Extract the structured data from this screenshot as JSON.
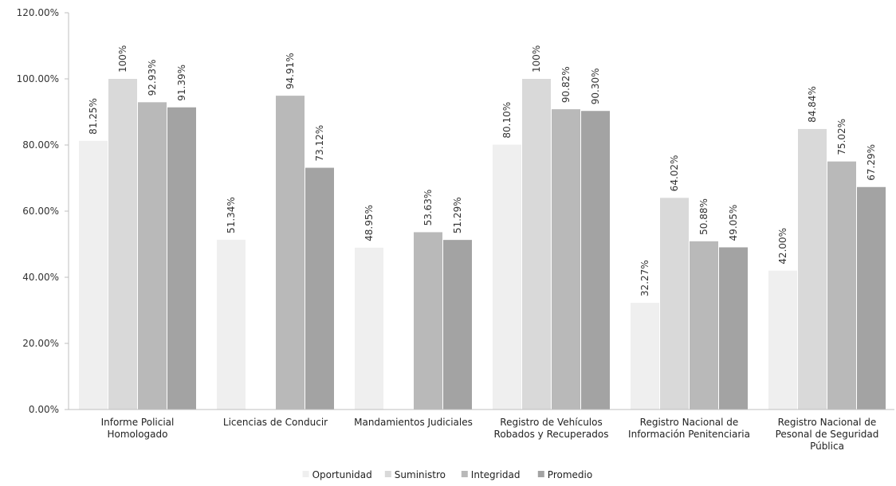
{
  "chart_data": {
    "type": "bar",
    "title": "",
    "xlabel": "",
    "ylabel": "",
    "ylim": [
      0,
      120
    ],
    "yticks": [
      0,
      20,
      40,
      60,
      80,
      100,
      120
    ],
    "ytick_labels": [
      "0.00%",
      "20.00%",
      "40.00%",
      "60.00%",
      "80.00%",
      "100.00%",
      "120.00%"
    ],
    "grid": false,
    "legend_position": "bottom",
    "categories": [
      [
        "Informe Policial",
        "Homologado"
      ],
      [
        "Licencias de Conducir"
      ],
      [
        "Mandamientos Judiciales"
      ],
      [
        "Registro de Vehículos",
        "Robados y Recuperados"
      ],
      [
        "Registro Nacional de",
        "Información Penitenciaria"
      ],
      [
        "Registro Nacional de",
        "Pesonal de Seguridad",
        "Pública"
      ]
    ],
    "series": [
      {
        "name": "Oportunidad",
        "color": "#efefef",
        "values": [
          81.25,
          51.34,
          48.95,
          80.1,
          32.27,
          42.0
        ],
        "labels": [
          "81.25%",
          "51.34%",
          "48.95%",
          "80.10%",
          "32.27%",
          "42.00%"
        ]
      },
      {
        "name": "Suministro",
        "color": "#d9d9d9",
        "values": [
          100,
          null,
          null,
          100,
          64.02,
          84.84
        ],
        "labels": [
          "100%",
          null,
          null,
          "100%",
          "64.02%",
          "84.84%"
        ]
      },
      {
        "name": "Integridad",
        "color": "#b9b9b9",
        "values": [
          92.93,
          94.91,
          53.63,
          90.82,
          50.88,
          75.02
        ],
        "labels": [
          "92.93%",
          "94.91%",
          "53.63%",
          "90.82%",
          "50.88%",
          "75.02%"
        ]
      },
      {
        "name": "Promedio",
        "color": "#a3a3a3",
        "values": [
          91.39,
          73.12,
          51.29,
          90.3,
          49.05,
          67.29
        ],
        "labels": [
          "91.39%",
          "73.12%",
          "51.29%",
          "90.30%",
          "49.05%",
          "67.29%"
        ]
      }
    ]
  }
}
